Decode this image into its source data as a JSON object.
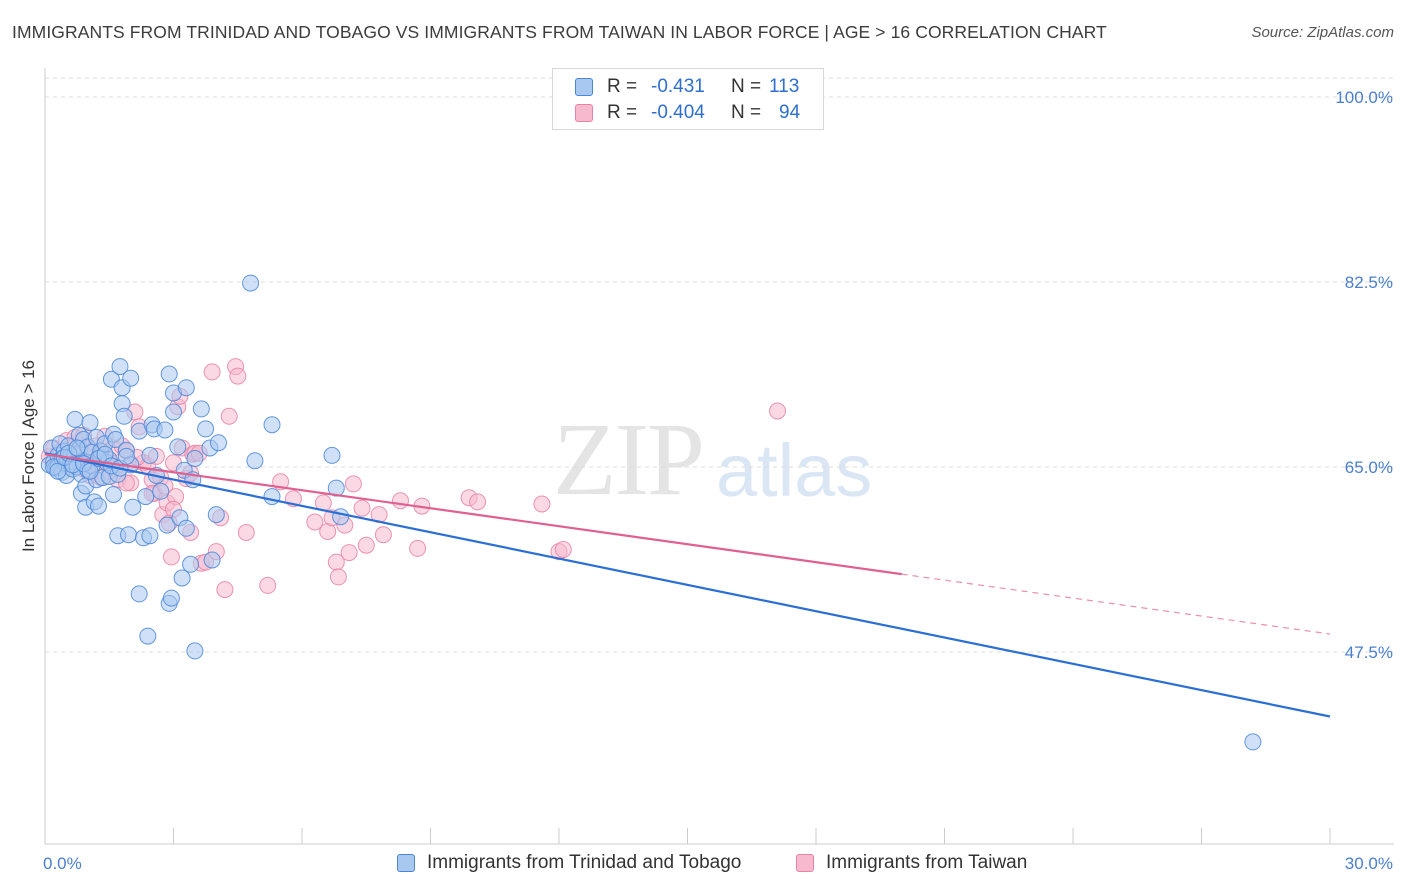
{
  "title": "IMMIGRANTS FROM TRINIDAD AND TOBAGO VS IMMIGRANTS FROM TAIWAN IN LABOR FORCE | AGE > 16 CORRELATION CHART",
  "source": "Source: ZipAtlas.com",
  "watermark": {
    "zip": "ZIP",
    "atlas": "atlas"
  },
  "legend_top": {
    "rows": [
      {
        "r_label": "R =",
        "r_value": "-0.431",
        "n_label": "N =",
        "n_value": "113"
      },
      {
        "r_label": "R =",
        "r_value": "-0.404",
        "n_label": "N =",
        "n_value": "94"
      }
    ]
  },
  "legend_bottom": {
    "series1": "Immigrants from Trinidad and Tobago",
    "series2": "Immigrants from Taiwan"
  },
  "colors": {
    "blue_fill": "#a9c8f0",
    "blue_stroke": "#4a86d8",
    "blue_line": "#2b6fd6",
    "pink_fill": "#f6b9cd",
    "pink_stroke": "#e882a6",
    "pink_line": "#e0608f",
    "grid": "#dcdcdc",
    "tick_text": "#4a7fcf"
  },
  "chart_data": {
    "type": "scatter",
    "title": "IMMIGRANTS FROM TRINIDAD AND TOBAGO VS IMMIGRANTS FROM TAIWAN IN LABOR FORCE | AGE > 16 CORRELATION CHART",
    "xlabel": "",
    "ylabel": "In Labor Force | Age > 16",
    "xlim": [
      0,
      30
    ],
    "ylim": [
      30,
      100
    ],
    "x_tick_labels": [
      "0.0%",
      "30.0%"
    ],
    "y_tick_values": [
      47.5,
      65.0,
      82.5,
      100.0
    ],
    "y_tick_labels": [
      "47.5%",
      "65.0%",
      "82.5%",
      "100.0%"
    ],
    "grid": true,
    "legend_position": "top-center",
    "series": [
      {
        "name": "Immigrants from Trinidad and Tobago",
        "r": -0.431,
        "n": 113,
        "trend": {
          "x": [
            0.0,
            30.0
          ],
          "y": [
            66.3,
            41.4
          ],
          "dashed_from": null
        },
        "points": [
          [
            0.1,
            65.2
          ],
          [
            0.15,
            66.8
          ],
          [
            0.2,
            65.5
          ],
          [
            0.25,
            64.9
          ],
          [
            0.3,
            66.1
          ],
          [
            0.3,
            65.0
          ],
          [
            0.35,
            67.2
          ],
          [
            0.4,
            65.8
          ],
          [
            0.4,
            64.5
          ],
          [
            0.45,
            66.5
          ],
          [
            0.5,
            65.3
          ],
          [
            0.5,
            64.2
          ],
          [
            0.55,
            67.0
          ],
          [
            0.6,
            66.0
          ],
          [
            0.6,
            65.5
          ],
          [
            0.65,
            64.8
          ],
          [
            0.7,
            69.5
          ],
          [
            0.7,
            66.2
          ],
          [
            0.75,
            65.0
          ],
          [
            0.8,
            68.0
          ],
          [
            0.8,
            66.7
          ],
          [
            0.85,
            64.3
          ],
          [
            0.85,
            62.5
          ],
          [
            0.9,
            65.6
          ],
          [
            0.9,
            67.6
          ],
          [
            0.95,
            63.2
          ],
          [
            0.95,
            61.2
          ],
          [
            1.0,
            64.7
          ],
          [
            1.0,
            66.9
          ],
          [
            1.05,
            69.2
          ],
          [
            1.1,
            66.4
          ],
          [
            1.1,
            65.1
          ],
          [
            1.15,
            61.7
          ],
          [
            1.2,
            63.8
          ],
          [
            1.2,
            67.8
          ],
          [
            1.25,
            61.3
          ],
          [
            1.3,
            65.9
          ],
          [
            1.3,
            66.5
          ],
          [
            1.35,
            64.0
          ],
          [
            1.4,
            67.2
          ],
          [
            1.45,
            65.4
          ],
          [
            1.5,
            65.7
          ],
          [
            1.5,
            64.1
          ],
          [
            1.55,
            73.3
          ],
          [
            1.6,
            68.1
          ],
          [
            1.6,
            62.4
          ],
          [
            1.65,
            67.6
          ],
          [
            1.7,
            64.3
          ],
          [
            1.7,
            58.5
          ],
          [
            1.75,
            74.5
          ],
          [
            1.8,
            72.5
          ],
          [
            1.8,
            71.0
          ],
          [
            1.85,
            69.8
          ],
          [
            1.9,
            66.6
          ],
          [
            1.95,
            58.6
          ],
          [
            2.0,
            65.2
          ],
          [
            2.0,
            73.4
          ],
          [
            2.05,
            61.2
          ],
          [
            2.2,
            68.4
          ],
          [
            2.2,
            53.0
          ],
          [
            2.3,
            58.3
          ],
          [
            2.35,
            62.2
          ],
          [
            2.4,
            49.0
          ],
          [
            2.45,
            66.1
          ],
          [
            2.45,
            58.5
          ],
          [
            2.5,
            69.0
          ],
          [
            2.55,
            68.6
          ],
          [
            2.6,
            64.2
          ],
          [
            2.7,
            62.7
          ],
          [
            2.8,
            68.5
          ],
          [
            2.85,
            59.5
          ],
          [
            2.9,
            73.8
          ],
          [
            2.9,
            52.1
          ],
          [
            2.95,
            52.6
          ],
          [
            3.0,
            70.2
          ],
          [
            3.0,
            72.0
          ],
          [
            3.1,
            66.9
          ],
          [
            3.15,
            60.2
          ],
          [
            3.2,
            54.5
          ],
          [
            3.25,
            64.7
          ],
          [
            3.3,
            72.5
          ],
          [
            3.3,
            59.2
          ],
          [
            3.4,
            55.8
          ],
          [
            3.45,
            63.8
          ],
          [
            3.5,
            65.8
          ],
          [
            3.5,
            47.6
          ],
          [
            3.65,
            70.5
          ],
          [
            3.75,
            68.6
          ],
          [
            3.85,
            66.8
          ],
          [
            3.9,
            56.2
          ],
          [
            4.0,
            60.5
          ],
          [
            4.05,
            67.3
          ],
          [
            4.8,
            82.4
          ],
          [
            4.9,
            65.6
          ],
          [
            5.3,
            62.2
          ],
          [
            5.3,
            69.0
          ],
          [
            6.7,
            66.1
          ],
          [
            6.8,
            63.0
          ],
          [
            6.9,
            60.3
          ],
          [
            28.2,
            39.0
          ],
          [
            0.2,
            65.0
          ],
          [
            0.3,
            64.6
          ],
          [
            0.45,
            65.9
          ],
          [
            0.55,
            66.3
          ],
          [
            0.65,
            65.2
          ],
          [
            0.75,
            66.8
          ],
          [
            0.9,
            65.3
          ],
          [
            1.05,
            64.6
          ],
          [
            1.25,
            65.8
          ],
          [
            1.4,
            66.2
          ],
          [
            1.55,
            65.1
          ],
          [
            1.75,
            64.9
          ],
          [
            1.9,
            66.0
          ]
        ]
      },
      {
        "name": "Immigrants from Taiwan",
        "r": -0.404,
        "n": 94,
        "trend": {
          "x": [
            0.0,
            30.0
          ],
          "y": [
            66.2,
            49.2
          ],
          "dashed_from": 20.0
        },
        "points": [
          [
            0.1,
            66.0
          ],
          [
            0.2,
            66.8
          ],
          [
            0.3,
            65.4
          ],
          [
            0.4,
            65.9
          ],
          [
            0.5,
            67.5
          ],
          [
            0.55,
            66.2
          ],
          [
            0.6,
            65.0
          ],
          [
            0.7,
            67.8
          ],
          [
            0.75,
            66.5
          ],
          [
            0.8,
            66.0
          ],
          [
            0.9,
            68.0
          ],
          [
            0.95,
            65.5
          ],
          [
            1.0,
            66.8
          ],
          [
            1.05,
            64.2
          ],
          [
            1.1,
            65.0
          ],
          [
            1.2,
            67.0
          ],
          [
            1.3,
            66.2
          ],
          [
            1.4,
            67.9
          ],
          [
            1.5,
            65.5
          ],
          [
            1.6,
            66.8
          ],
          [
            1.65,
            65.0
          ],
          [
            1.7,
            63.8
          ],
          [
            1.8,
            67.0
          ],
          [
            1.9,
            66.5
          ],
          [
            2.0,
            65.3
          ],
          [
            2.1,
            70.2
          ],
          [
            2.2,
            68.8
          ],
          [
            2.3,
            65.4
          ],
          [
            2.4,
            65.1
          ],
          [
            2.5,
            63.8
          ],
          [
            2.55,
            62.5
          ],
          [
            2.6,
            66.0
          ],
          [
            2.7,
            64.0
          ],
          [
            2.75,
            60.5
          ],
          [
            2.8,
            63.2
          ],
          [
            2.85,
            61.6
          ],
          [
            2.9,
            59.7
          ],
          [
            2.95,
            56.5
          ],
          [
            3.0,
            65.4
          ],
          [
            3.05,
            62.2
          ],
          [
            3.1,
            70.7
          ],
          [
            3.15,
            71.7
          ],
          [
            3.2,
            66.8
          ],
          [
            3.3,
            63.9
          ],
          [
            3.4,
            64.4
          ],
          [
            3.45,
            66.2
          ],
          [
            3.5,
            66.3
          ],
          [
            3.6,
            66.3
          ],
          [
            3.65,
            55.9
          ],
          [
            3.75,
            56.0
          ],
          [
            3.9,
            74.0
          ],
          [
            4.0,
            57.0
          ],
          [
            4.1,
            60.2
          ],
          [
            4.2,
            53.4
          ],
          [
            4.3,
            69.8
          ],
          [
            4.45,
            74.5
          ],
          [
            4.5,
            73.6
          ],
          [
            4.7,
            58.8
          ],
          [
            5.2,
            53.8
          ],
          [
            5.5,
            63.6
          ],
          [
            5.8,
            62.0
          ],
          [
            6.3,
            59.8
          ],
          [
            6.5,
            61.6
          ],
          [
            6.6,
            58.9
          ],
          [
            6.7,
            60.2
          ],
          [
            6.8,
            56.0
          ],
          [
            6.85,
            54.6
          ],
          [
            7.0,
            59.5
          ],
          [
            7.1,
            56.9
          ],
          [
            7.2,
            63.4
          ],
          [
            7.4,
            61.1
          ],
          [
            7.5,
            57.6
          ],
          [
            7.8,
            60.5
          ],
          [
            7.9,
            58.6
          ],
          [
            8.3,
            61.8
          ],
          [
            8.7,
            57.3
          ],
          [
            8.8,
            61.3
          ],
          [
            9.9,
            62.1
          ],
          [
            10.1,
            61.7
          ],
          [
            11.6,
            61.5
          ],
          [
            12.0,
            57.0
          ],
          [
            12.1,
            57.2
          ],
          [
            17.1,
            70.3
          ],
          [
            1.5,
            64.6
          ],
          [
            2.0,
            63.5
          ],
          [
            2.5,
            62.5
          ],
          [
            3.0,
            61.0
          ],
          [
            3.4,
            58.8
          ],
          [
            0.9,
            64.8
          ],
          [
            1.3,
            64.0
          ],
          [
            1.9,
            63.5
          ],
          [
            2.15,
            65.9
          ],
          [
            0.35,
            66.4
          ],
          [
            0.65,
            66.9
          ]
        ]
      }
    ]
  }
}
